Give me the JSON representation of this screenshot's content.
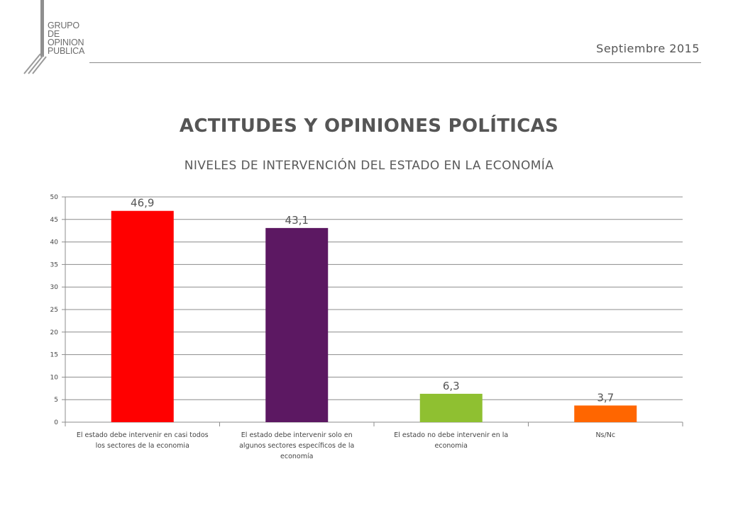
{
  "logo": {
    "lines": [
      "GRUPO",
      "DE",
      "OPINION",
      "PUBLICA"
    ]
  },
  "header": {
    "date": "Septiembre 2015"
  },
  "titles": {
    "main": "ACTITUDES Y OPINIONES POLÍTICAS",
    "sub": "NIVELES DE INTERVENCIÓN DEL ESTADO EN LA ECONOMÍA"
  },
  "chart_data": {
    "type": "bar",
    "categories": [
      [
        "El estado debe intervenir en casi todos",
        "los sectores de la economia"
      ],
      [
        "El estado debe intervenir solo en",
        "algunos sectores específicos de la",
        "economía"
      ],
      [
        "El estado no debe intervenir en la",
        "economia"
      ],
      [
        "Ns/Nc"
      ]
    ],
    "values": [
      46.9,
      43.1,
      6.3,
      3.7
    ],
    "value_labels": [
      "46,9",
      "43,1",
      "6,3",
      "3,7"
    ],
    "colors": [
      "#ff0000",
      "#5c1862",
      "#8fc031",
      "#ff6600"
    ],
    "ylim": [
      0,
      50
    ],
    "yticks": [
      0,
      5,
      10,
      15,
      20,
      25,
      30,
      35,
      40,
      45,
      50
    ],
    "grid": true
  }
}
